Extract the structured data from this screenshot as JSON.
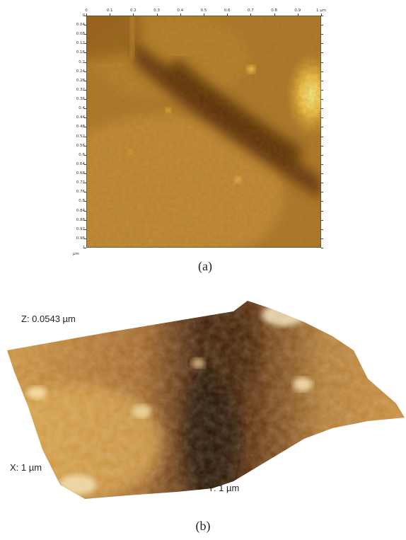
{
  "panel_a": {
    "caption": "(a)",
    "x_ticks": [
      "0",
      "0.1",
      "0.2",
      "0.3",
      "0.4",
      "0.5",
      "0.6",
      "0.7",
      "0.8",
      "0.9",
      "1 µm"
    ],
    "y_ticks": [
      "0",
      "0.04",
      "0.08",
      "0.12",
      "0.16",
      "0.2",
      "0.24",
      "0.28",
      "0.32",
      "0.36",
      "0.4",
      "0.44",
      "0.48",
      "0.52",
      "0.56",
      "0.6",
      "0.64",
      "0.68",
      "0.72",
      "0.76",
      "0.8",
      "0.84",
      "0.88",
      "0.92",
      "0.96",
      "1"
    ],
    "y_unit": "µm",
    "colormap": [
      "#3a1a04",
      "#7a4510",
      "#b07022",
      "#e0a838",
      "#ffe070"
    ]
  },
  "panel_b": {
    "caption": "(b)",
    "z_label": "Z: 0.0543 µm",
    "x_label": "X: 1 µm",
    "y_label": "Y: 1 µm"
  }
}
